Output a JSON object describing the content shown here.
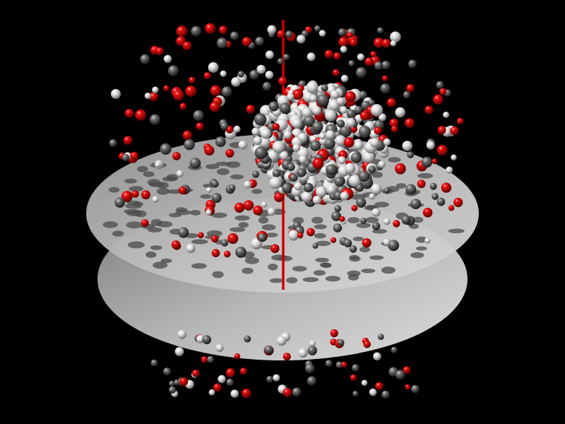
{
  "scene": {
    "background": "#000000",
    "description_visible_text": "",
    "colors": {
      "atom_red": "#d40000",
      "atom_white": "#f2f2f2",
      "atom_gray": "#5a5a5a",
      "membrane_disk": "#bcbcbc",
      "axis_line": "#cc0000"
    }
  }
}
